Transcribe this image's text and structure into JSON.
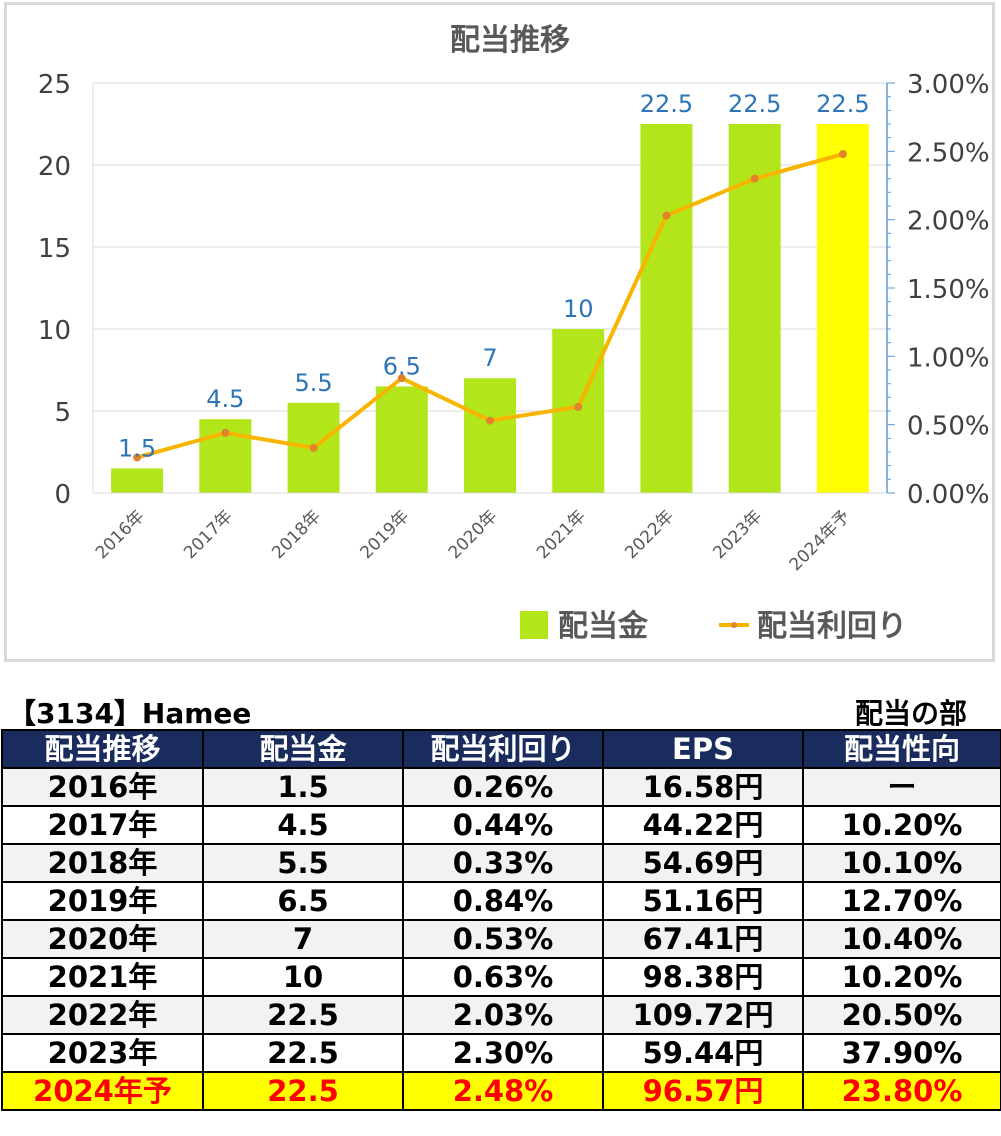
{
  "chart_data": {
    "type": "bar",
    "title": "配当推移",
    "categories": [
      "2016年",
      "2017年",
      "2018年",
      "2019年",
      "2020年",
      "2021年",
      "2022年",
      "2023年",
      "2024年予"
    ],
    "series": [
      {
        "name": "配当金",
        "type": "bar",
        "axis": "left",
        "values": [
          1.5,
          4.5,
          5.5,
          6.5,
          7,
          10,
          22.5,
          22.5,
          22.5
        ],
        "color": "#b3e61a",
        "highlight_color": "#ffff00",
        "highlight_index": 8
      },
      {
        "name": "配当利回り",
        "type": "line",
        "axis": "right",
        "values": [
          0.26,
          0.44,
          0.33,
          0.84,
          0.53,
          0.63,
          2.03,
          2.3,
          2.48
        ],
        "unit": "%",
        "color": "#f7b500",
        "marker_color": "#e0832a"
      }
    ],
    "data_labels": [
      "1.5",
      "4.5",
      "5.5",
      "6.5",
      "7",
      "10",
      "22.5",
      "22.5",
      "22.5"
    ],
    "y_left": {
      "ticks": [
        "0",
        "5",
        "10",
        "15",
        "20",
        "25"
      ],
      "range": [
        0,
        25
      ]
    },
    "y_right": {
      "ticks": [
        "0.00%",
        "0.50%",
        "1.00%",
        "1.50%",
        "2.00%",
        "2.50%",
        "3.00%"
      ],
      "range": [
        0,
        3
      ]
    },
    "legend_position": "bottom-right",
    "grid": true
  },
  "company_title": "【3134】Hamee",
  "section_label": "配当の部",
  "table": {
    "headers": [
      "配当推移",
      "配当金",
      "配当利回り",
      "EPS",
      "配当性向"
    ],
    "rows": [
      [
        "2016年",
        "1.5",
        "0.26%",
        "16.58円",
        "ー"
      ],
      [
        "2017年",
        "4.5",
        "0.44%",
        "44.22円",
        "10.20%"
      ],
      [
        "2018年",
        "5.5",
        "0.33%",
        "54.69円",
        "10.10%"
      ],
      [
        "2019年",
        "6.5",
        "0.84%",
        "51.16円",
        "12.70%"
      ],
      [
        "2020年",
        "7",
        "0.53%",
        "67.41円",
        "10.40%"
      ],
      [
        "2021年",
        "10",
        "0.63%",
        "98.38円",
        "10.20%"
      ],
      [
        "2022年",
        "22.5",
        "2.03%",
        "109.72円",
        "20.50%"
      ],
      [
        "2023年",
        "22.5",
        "2.30%",
        "59.44円",
        "37.90%"
      ],
      [
        "2024年予",
        "22.5",
        "2.48%",
        "96.57円",
        "23.80%"
      ]
    ]
  }
}
